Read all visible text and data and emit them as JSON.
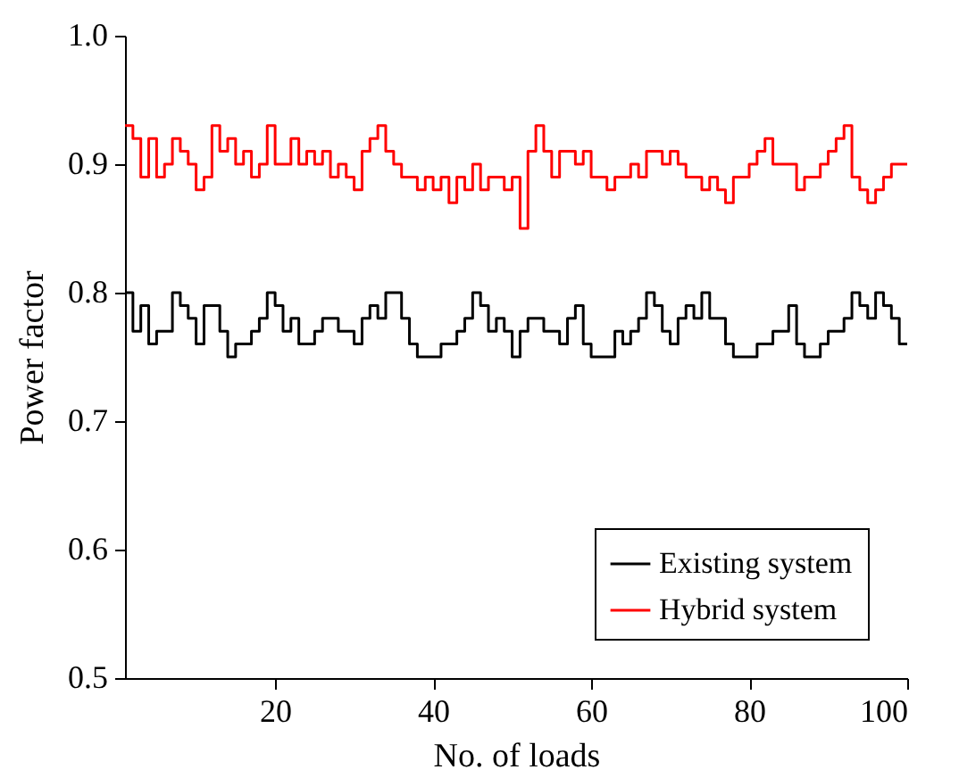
{
  "chart_data": {
    "type": "step",
    "xlabel": "No. of loads",
    "ylabel": "Power factor",
    "x": [
      1,
      2,
      3,
      4,
      5,
      6,
      7,
      8,
      9,
      10,
      11,
      12,
      13,
      14,
      15,
      16,
      17,
      18,
      19,
      20,
      21,
      22,
      23,
      24,
      25,
      26,
      27,
      28,
      29,
      30,
      31,
      32,
      33,
      34,
      35,
      36,
      37,
      38,
      39,
      40,
      41,
      42,
      43,
      44,
      45,
      46,
      47,
      48,
      49,
      50,
      51,
      52,
      53,
      54,
      55,
      56,
      57,
      58,
      59,
      60,
      61,
      62,
      63,
      64,
      65,
      66,
      67,
      68,
      69,
      70,
      71,
      72,
      73,
      74,
      75,
      76,
      77,
      78,
      79,
      80,
      81,
      82,
      83,
      84,
      85,
      86,
      87,
      88,
      89,
      90,
      91,
      92,
      93,
      94,
      95,
      96,
      97,
      98,
      99,
      100
    ],
    "series": [
      {
        "name": "Existing system",
        "color": "#000000",
        "values": [
          0.8,
          0.77,
          0.79,
          0.76,
          0.77,
          0.77,
          0.8,
          0.79,
          0.78,
          0.76,
          0.79,
          0.79,
          0.77,
          0.75,
          0.76,
          0.76,
          0.77,
          0.78,
          0.8,
          0.79,
          0.77,
          0.78,
          0.76,
          0.76,
          0.77,
          0.78,
          0.78,
          0.77,
          0.77,
          0.76,
          0.78,
          0.79,
          0.78,
          0.8,
          0.8,
          0.78,
          0.76,
          0.75,
          0.75,
          0.75,
          0.76,
          0.76,
          0.77,
          0.78,
          0.8,
          0.79,
          0.77,
          0.78,
          0.77,
          0.75,
          0.77,
          0.78,
          0.78,
          0.77,
          0.77,
          0.76,
          0.78,
          0.79,
          0.76,
          0.75,
          0.75,
          0.75,
          0.77,
          0.76,
          0.77,
          0.78,
          0.8,
          0.79,
          0.77,
          0.76,
          0.78,
          0.79,
          0.78,
          0.8,
          0.78,
          0.78,
          0.76,
          0.75,
          0.75,
          0.75,
          0.76,
          0.76,
          0.77,
          0.77,
          0.79,
          0.76,
          0.75,
          0.75,
          0.76,
          0.77,
          0.77,
          0.78,
          0.8,
          0.79,
          0.78,
          0.8,
          0.79,
          0.78,
          0.76,
          0.76
        ]
      },
      {
        "name": "Hybrid system",
        "color": "#ff0000",
        "values": [
          0.93,
          0.92,
          0.89,
          0.92,
          0.89,
          0.9,
          0.92,
          0.91,
          0.9,
          0.88,
          0.89,
          0.93,
          0.91,
          0.92,
          0.9,
          0.91,
          0.89,
          0.9,
          0.93,
          0.9,
          0.9,
          0.92,
          0.9,
          0.91,
          0.9,
          0.91,
          0.89,
          0.9,
          0.89,
          0.88,
          0.91,
          0.92,
          0.93,
          0.91,
          0.9,
          0.89,
          0.89,
          0.88,
          0.89,
          0.88,
          0.89,
          0.87,
          0.89,
          0.88,
          0.9,
          0.88,
          0.89,
          0.89,
          0.88,
          0.89,
          0.85,
          0.91,
          0.93,
          0.91,
          0.89,
          0.91,
          0.91,
          0.9,
          0.91,
          0.89,
          0.89,
          0.88,
          0.89,
          0.89,
          0.9,
          0.89,
          0.91,
          0.91,
          0.9,
          0.91,
          0.9,
          0.89,
          0.89,
          0.88,
          0.89,
          0.88,
          0.87,
          0.89,
          0.89,
          0.9,
          0.91,
          0.92,
          0.9,
          0.9,
          0.9,
          0.88,
          0.89,
          0.89,
          0.9,
          0.91,
          0.92,
          0.93,
          0.89,
          0.88,
          0.87,
          0.88,
          0.89,
          0.9,
          0.9,
          0.9
        ]
      }
    ],
    "xlim": [
      1,
      100
    ],
    "xticks": [
      20,
      40,
      60,
      80,
      100
    ],
    "ylim": [
      0.5,
      1.0
    ],
    "yticks": [
      {
        "value": 0.5,
        "label": "0.5"
      },
      {
        "value": 0.6,
        "label": "0.6"
      },
      {
        "value": 0.7,
        "label": "0.7"
      },
      {
        "value": 0.8,
        "label": "0.8"
      },
      {
        "value": 0.9,
        "label": "0.9"
      },
      {
        "value": 1.0,
        "label": "1.0"
      }
    ],
    "legend": "bottom right",
    "grid": false,
    "marker": "none",
    "line_style": "solid"
  }
}
